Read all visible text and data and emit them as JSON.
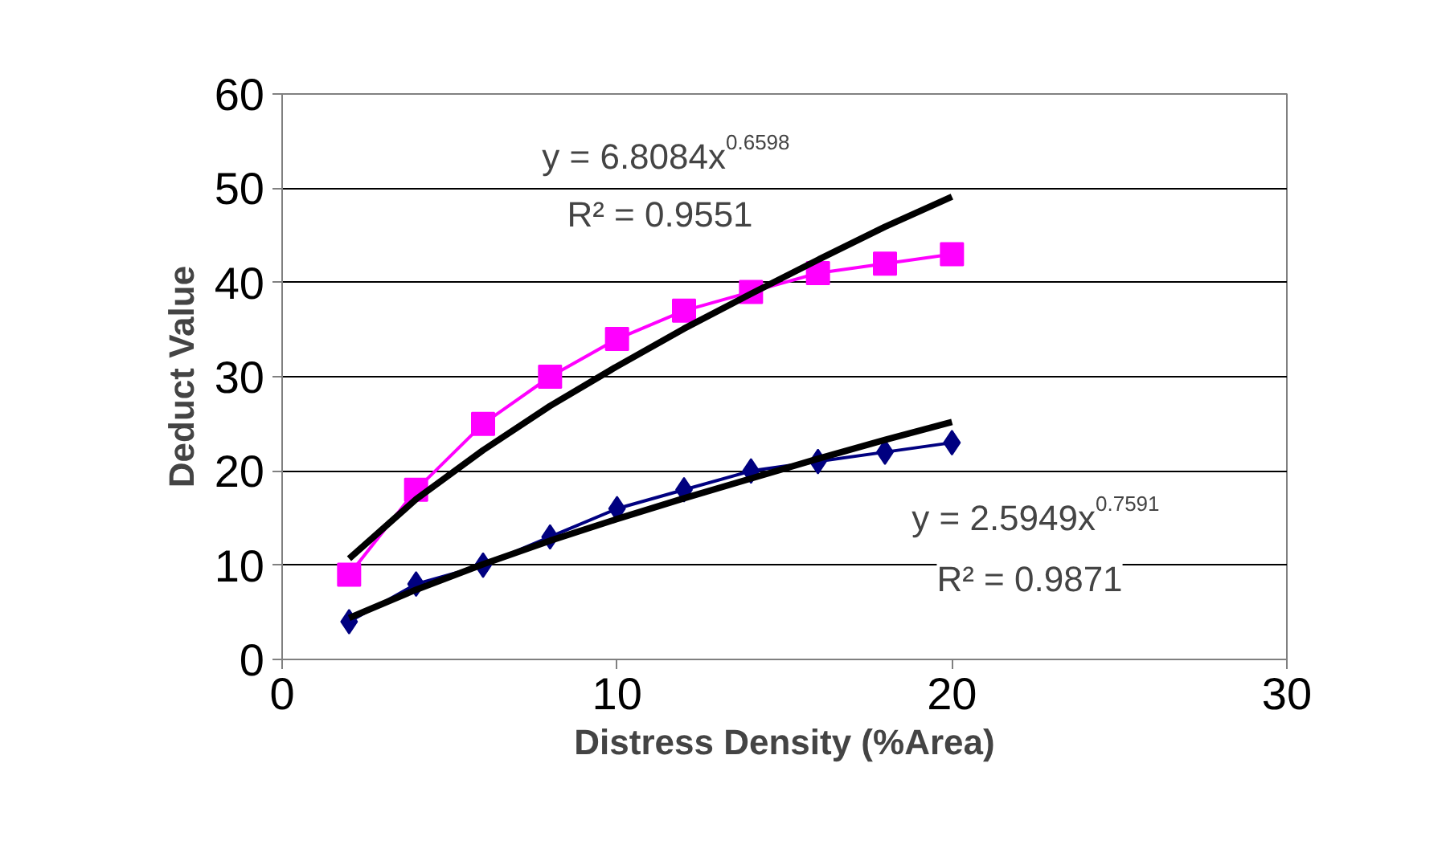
{
  "chart_data": {
    "type": "line",
    "xlabel": "Distress Density (%Area)",
    "ylabel": "Deduct Value",
    "x": [
      2,
      4,
      6,
      8,
      10,
      12,
      14,
      16,
      18,
      20
    ],
    "series": [
      {
        "color": "#ff00ff",
        "marker": "square",
        "values": [
          9,
          18,
          25,
          30,
          34,
          37,
          39,
          41,
          42,
          43
        ]
      },
      {
        "color": "#000080",
        "marker": "diamond",
        "values": [
          4,
          8,
          10,
          13,
          16,
          18,
          20,
          21,
          22,
          23
        ]
      },
      {
        "color": "#000000",
        "marker": "none",
        "x": [
          2,
          4,
          6,
          8,
          10,
          12,
          14,
          16,
          18,
          20
        ],
        "values": [
          10.7,
          17.0,
          22.2,
          26.9,
          31.1,
          35.1,
          38.8,
          42.4,
          45.9,
          49.1
        ]
      },
      {
        "color": "#000000",
        "marker": "none",
        "x": [
          2,
          4,
          6,
          8,
          10,
          12,
          14,
          16,
          18,
          20
        ],
        "values": [
          4.4,
          7.4,
          10.1,
          12.6,
          14.9,
          17.1,
          19.2,
          21.3,
          23.3,
          25.2
        ]
      }
    ],
    "annotations": [
      "y = 6.8084x$^{0.6598}$",
      "R² = 0.9551",
      "y = 2.5949x$^{0.7591}$",
      "R² = 0.9871"
    ],
    "xlim": [
      0,
      30
    ],
    "xticks": [
      0,
      10,
      20,
      30
    ],
    "ylim": [
      0,
      60
    ],
    "yticks": [
      0,
      10,
      20,
      30,
      40,
      50,
      60
    ],
    "grid": "y"
  }
}
